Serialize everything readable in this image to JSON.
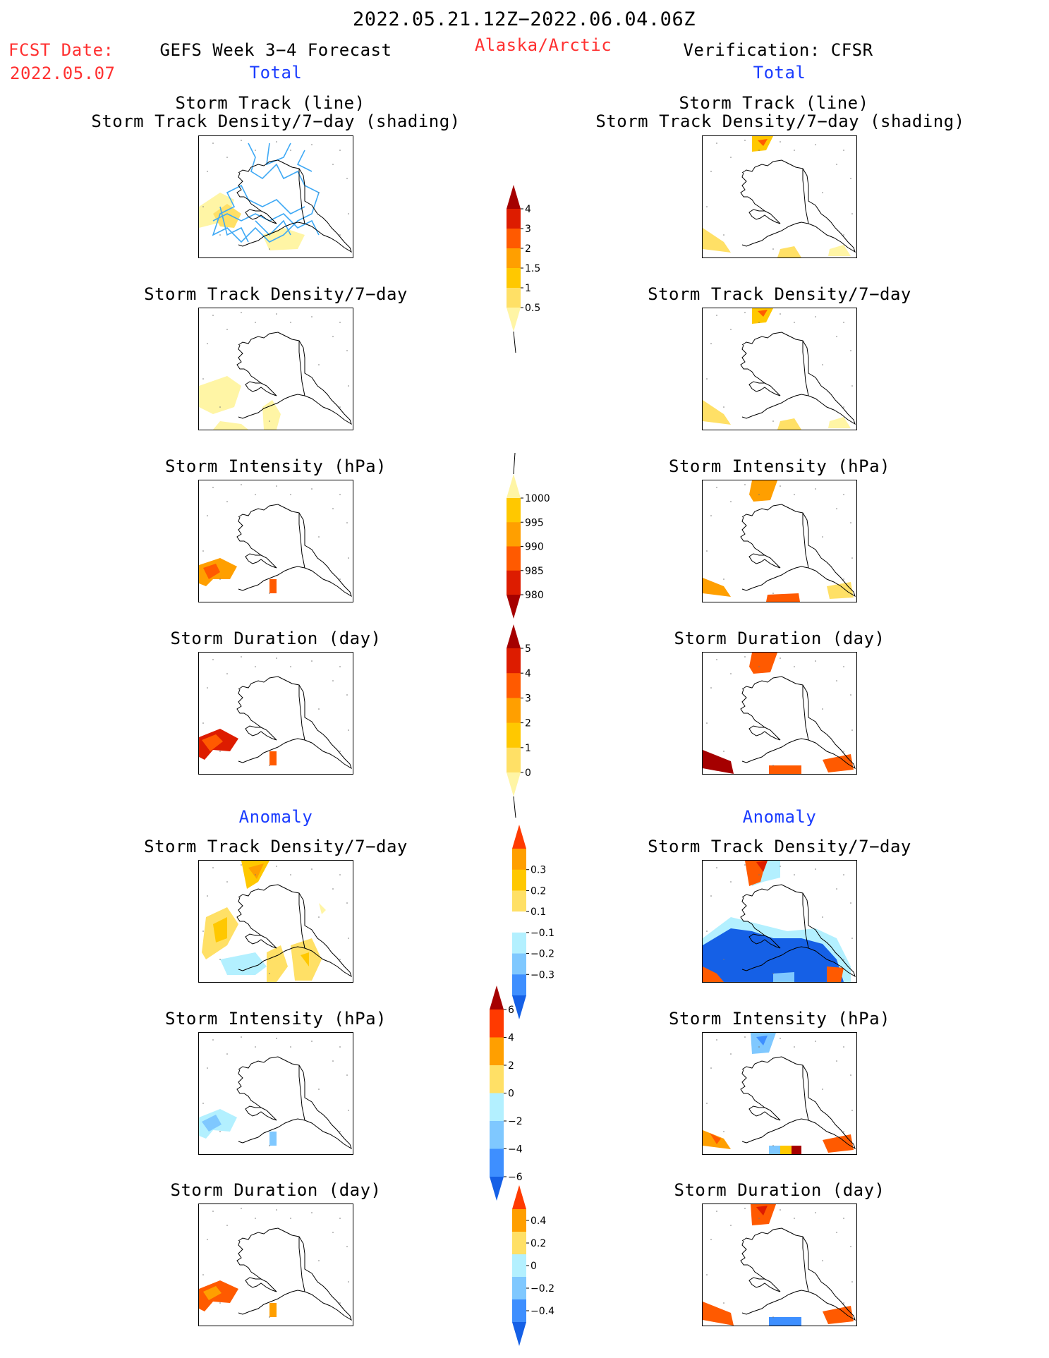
{
  "header": {
    "date_range": "2022.05.21.12Z−2022.06.04.06Z",
    "fcst_label": "FCST Date:",
    "fcst_date": "2022.05.07",
    "model_title": "GEFS Week 3−4 Forecast",
    "region": "Alaska/Arctic",
    "verification": "Verification: CFSR",
    "left_section": "Total",
    "right_section": "Total"
  },
  "panel_titles": {
    "storm_track_line": "Storm Track (line)",
    "storm_track_shading": "Storm Track Density/7−day (shading)",
    "density": "Storm Track Density/7−day",
    "intensity": "Storm Intensity (hPa)",
    "duration": "Storm Duration (day)"
  },
  "anomaly_label": "Anomaly",
  "colorbars": {
    "density_total": {
      "labels": [
        "4",
        "3",
        "2",
        "1.5",
        "1",
        "0.5"
      ],
      "colors": [
        "#a50000",
        "#dd1c00",
        "#ff5a00",
        "#ff9f00",
        "#ffc800",
        "#ffe066",
        "#fff5a5"
      ]
    },
    "intensity_total": {
      "labels": [
        "1000",
        "995",
        "990",
        "985",
        "980"
      ],
      "colors": [
        "#fff5a5",
        "#ffc800",
        "#ff9f00",
        "#ff5a00",
        "#dd1c00",
        "#a50000"
      ]
    },
    "duration_total": {
      "labels": [
        "5",
        "4",
        "3",
        "2",
        "1",
        "0"
      ],
      "colors": [
        "#a50000",
        "#dd1c00",
        "#ff5a00",
        "#ff9f00",
        "#ffc800",
        "#ffe066",
        "#fff5a5"
      ]
    },
    "density_anom": {
      "labels": [
        "0.3",
        "0.2",
        "0.1",
        "−0.1",
        "−0.2",
        "−0.3"
      ],
      "colors": [
        "#ff3a00",
        "#ff9f00",
        "#ffc800",
        "#ffe066",
        "#ffffff",
        "#b3f0ff",
        "#7fc8ff",
        "#3e8fff",
        "#1560e6"
      ]
    },
    "intensity_anom": {
      "labels": [
        "6",
        "4",
        "2",
        "0",
        "−2",
        "−4",
        "−6"
      ],
      "colors": [
        "#a50000",
        "#ff3a00",
        "#ff9f00",
        "#ffe066",
        "#b3f0ff",
        "#7fc8ff",
        "#3e8fff",
        "#1560e6"
      ]
    },
    "duration_anom": {
      "labels": [
        "0.4",
        "0.2",
        "0",
        "−0.2",
        "−0.4"
      ],
      "colors": [
        "#ff3a00",
        "#ff9f00",
        "#ffe066",
        "#b3f0ff",
        "#7fc8ff",
        "#3e8fff",
        "#1560e6"
      ]
    }
  },
  "map_colors": {
    "track_line": "#3fa9f5",
    "coastline": "#000000"
  }
}
